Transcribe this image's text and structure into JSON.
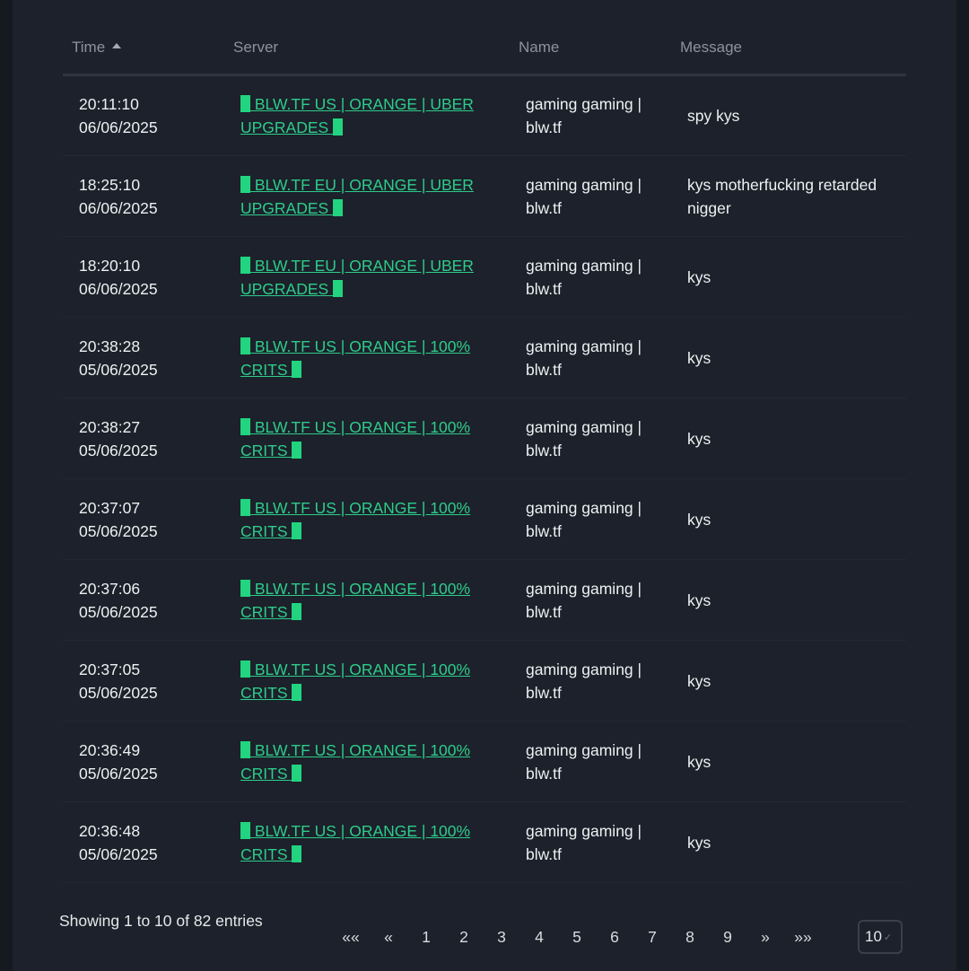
{
  "table": {
    "headers": {
      "time": "Time",
      "server": "Server",
      "name": "Name",
      "message": "Message"
    },
    "rows": [
      {
        "time": "20:11:10",
        "date": "06/06/2025",
        "server_a": " BLW.TF US | ORANGE | UBER",
        "server_b": "UPGRADES ",
        "name": "gaming gaming | blw.tf",
        "message": "spy kys"
      },
      {
        "time": "18:25:10",
        "date": "06/06/2025",
        "server_a": " BLW.TF EU | ORANGE | UBER",
        "server_b": "UPGRADES ",
        "name": "gaming gaming | blw.tf",
        "message": "kys motherfucking retarded nigger"
      },
      {
        "time": "18:20:10",
        "date": "06/06/2025",
        "server_a": " BLW.TF EU | ORANGE | UBER",
        "server_b": "UPGRADES ",
        "name": "gaming gaming | blw.tf",
        "message": "kys"
      },
      {
        "time": "20:38:28",
        "date": "05/06/2025",
        "server_a": " BLW.TF US | ORANGE | 100%",
        "server_b": "CRITS ",
        "name": "gaming gaming | blw.tf",
        "message": "kys"
      },
      {
        "time": "20:38:27",
        "date": "05/06/2025",
        "server_a": " BLW.TF US | ORANGE | 100%",
        "server_b": "CRITS ",
        "name": "gaming gaming | blw.tf",
        "message": "kys"
      },
      {
        "time": "20:37:07",
        "date": "05/06/2025",
        "server_a": " BLW.TF US | ORANGE | 100%",
        "server_b": "CRITS ",
        "name": "gaming gaming | blw.tf",
        "message": "kys"
      },
      {
        "time": "20:37:06",
        "date": "05/06/2025",
        "server_a": " BLW.TF US | ORANGE | 100%",
        "server_b": "CRITS ",
        "name": "gaming gaming | blw.tf",
        "message": "kys"
      },
      {
        "time": "20:37:05",
        "date": "05/06/2025",
        "server_a": " BLW.TF US | ORANGE | 100%",
        "server_b": "CRITS ",
        "name": "gaming gaming | blw.tf",
        "message": "kys"
      },
      {
        "time": "20:36:49",
        "date": "05/06/2025",
        "server_a": " BLW.TF US | ORANGE | 100%",
        "server_b": "CRITS ",
        "name": "gaming gaming | blw.tf",
        "message": "kys"
      },
      {
        "time": "20:36:48",
        "date": "05/06/2025",
        "server_a": " BLW.TF US | ORANGE | 100%",
        "server_b": "CRITS ",
        "name": "gaming gaming | blw.tf",
        "message": "kys"
      }
    ]
  },
  "footer": {
    "info": "Showing 1 to 10 of 82 entries",
    "pages": [
      "««",
      "«",
      "1",
      "2",
      "3",
      "4",
      "5",
      "6",
      "7",
      "8",
      "9",
      "»",
      "»»"
    ],
    "per_page": "10"
  },
  "colors": {
    "link": "#2ecc8a",
    "block": "#22d47f",
    "panel": "#1c212b",
    "background": "#151a21"
  },
  "icons": {
    "sort": "sort-ascending-icon",
    "select": "chevron-down-icon"
  }
}
